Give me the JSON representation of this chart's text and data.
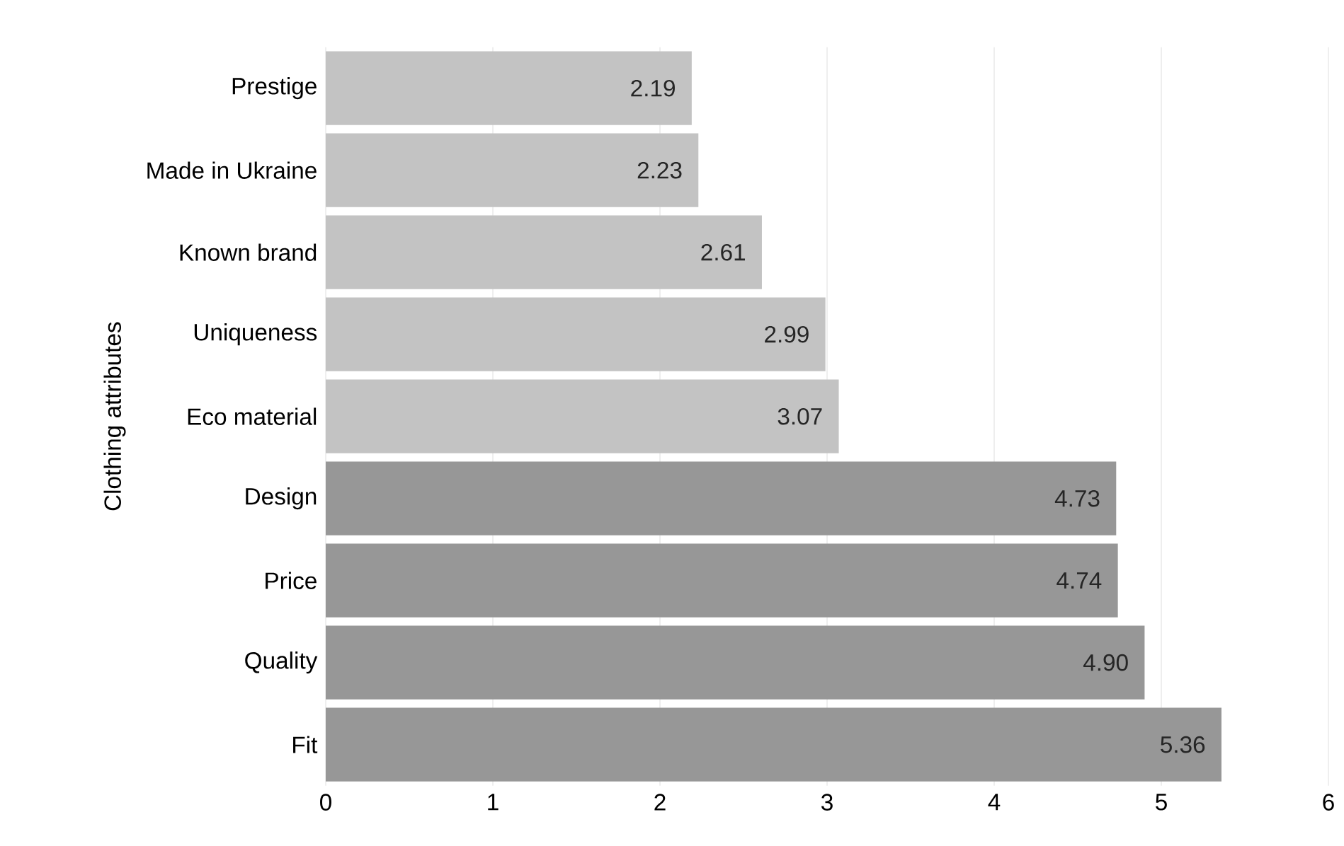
{
  "chart_data": {
    "type": "bar",
    "orientation": "horizontal",
    "ylabel": "Clothing attributes",
    "categories": [
      "Prestige",
      "Made in Ukraine",
      "Known brand",
      "Uniqueness",
      "Eco material",
      "Design",
      "Price",
      "Quality",
      "Fit"
    ],
    "values": [
      2.19,
      2.23,
      2.61,
      2.99,
      3.07,
      4.73,
      4.74,
      4.9,
      5.36
    ],
    "value_labels": [
      "2.19",
      "2.23",
      "2.61",
      "2.99",
      "3.07",
      "4.73",
      "4.74",
      "4.90",
      "5.36"
    ],
    "colors": [
      "#c3c3c3",
      "#c3c3c3",
      "#c3c3c3",
      "#c3c3c3",
      "#c3c3c3",
      "#979797",
      "#979797",
      "#979797",
      "#979797"
    ],
    "xlim": [
      0,
      6
    ],
    "xticks": [
      0,
      1,
      2,
      3,
      4,
      5,
      6
    ],
    "grid": "x"
  }
}
